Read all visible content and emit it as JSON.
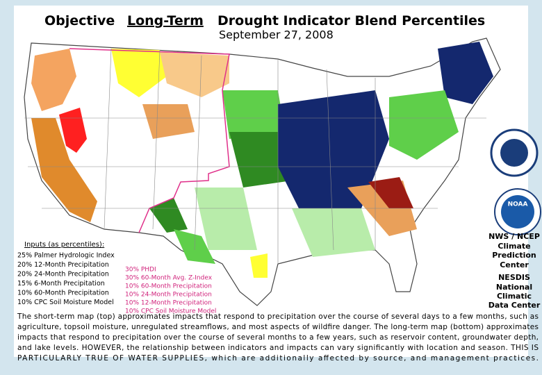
{
  "title": {
    "prefix": "Objective",
    "emphasis": "Long-Term",
    "rest": "Drought Indicator Blend Percentiles",
    "date": "September 27, 2008"
  },
  "inputs": {
    "heading": "Inputs (as percentiles):",
    "items": [
      "25% Palmer Hydrologic Index",
      "20% 12-Month Precipitation",
      "20% 24-Month Precipitation",
      "15% 6-Month Precipitation",
      "10% 60-Month Precipitation",
      "10% CPC Soil Moisture Model"
    ],
    "west_items": [
      "30% PHDI",
      "30% 60-Month Avg. Z-Index",
      "10% 60-Month Precipitation",
      "10% 24-Month Precipitation",
      "10% 12-Month Precipitation",
      "10% CPC Soil Moisture Model"
    ]
  },
  "logos": [
    "NOAA"
  ],
  "agencies": [
    "NWS / NCEP",
    "Climate",
    "Prediction",
    "Center",
    "NESDIS",
    "National",
    "Climatic",
    "Data Center"
  ],
  "description": [
    "The short-term map (top) approximates impacts that respond to precipitation over the course of several days to a few months, such as",
    "agriculture, topsoil moisture, unregulated streamflows, and most aspects of wildfire danger. The long-term map (bottom) approximates",
    "impacts that respond to precipitation over the course of several months to a few years, such as reservoir content, groundwater depth,",
    "and lake levels. HOWEVER, the relationship between indicators and impacts can vary significantly with location and season. THIS IS",
    "PARTICULARLY TRUE OF WATER SUPPLIES, which are additionally affected by source, and management practices."
  ]
}
